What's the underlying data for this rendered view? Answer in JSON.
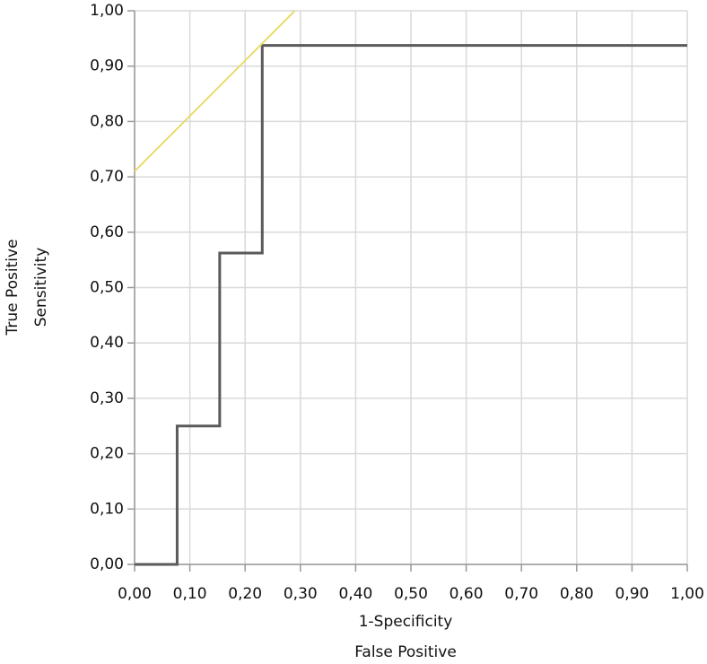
{
  "chart_data": {
    "type": "line",
    "xlabel": [
      "1-Specificity",
      "False Positive"
    ],
    "ylabel": [
      "True Positive",
      "Sensitivity"
    ],
    "series": [
      {
        "color": "#5a5a5a",
        "x": [
          0,
          0.077,
          0.077,
          0.154,
          0.154,
          0.231,
          0.231,
          1
        ],
        "values": [
          0,
          0,
          0.25,
          0.25,
          0.5625,
          0.5625,
          0.9375,
          0.9375
        ]
      },
      {
        "color": "#e8dc6a",
        "x": [
          0,
          0.29
        ],
        "values": [
          0.71,
          1.0
        ]
      }
    ],
    "xlim": [
      0,
      1
    ],
    "ylim": [
      0,
      1
    ],
    "xticks": [
      {
        "value": 0,
        "label": "0,00"
      },
      {
        "value": 0.1,
        "label": "0,10"
      },
      {
        "value": 0.2,
        "label": "0,20"
      },
      {
        "value": 0.3,
        "label": "0,30"
      },
      {
        "value": 0.4,
        "label": "0,40"
      },
      {
        "value": 0.5,
        "label": "0,50"
      },
      {
        "value": 0.6,
        "label": "0,60"
      },
      {
        "value": 0.7,
        "label": "0,70"
      },
      {
        "value": 0.8,
        "label": "0,80"
      },
      {
        "value": 0.9,
        "label": "0,90"
      },
      {
        "value": 1,
        "label": "1,00"
      }
    ],
    "yticks": [
      {
        "value": 0,
        "label": "0,00"
      },
      {
        "value": 0.1,
        "label": "0,10"
      },
      {
        "value": 0.2,
        "label": "0,20"
      },
      {
        "value": 0.3,
        "label": "0,30"
      },
      {
        "value": 0.4,
        "label": "0,40"
      },
      {
        "value": 0.5,
        "label": "0,50"
      },
      {
        "value": 0.6,
        "label": "0,60"
      },
      {
        "value": 0.7,
        "label": "0,70"
      },
      {
        "value": 0.8,
        "label": "0,80"
      },
      {
        "value": 0.9,
        "label": "0,90"
      },
      {
        "value": 1,
        "label": "1,00"
      }
    ],
    "grid": true
  }
}
